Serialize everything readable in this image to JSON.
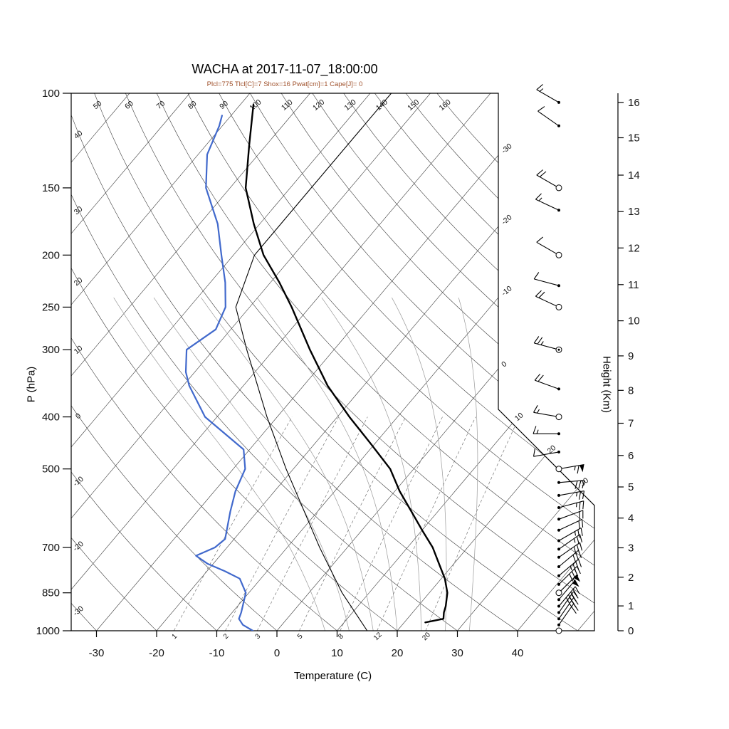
{
  "page": {
    "title": "WACHA at 2017-11-07_18:00:00",
    "subtitle": "Plcl=775 Tlcl[C]=7 Shox=16 Pwat[cm]=1 Cape[J]= 0"
  },
  "chart_data": {
    "type": "skewt-log-p-sounding",
    "station": "WACHA",
    "datetime": "2017-11-07_18:00:00",
    "title": "WACHA at 2017-11-07_18:00:00",
    "subtitle": "Plcl=775 Tlcl[C]=7 Shox=16 Pwat[cm]=1 Cape[J]= 0",
    "axes": {
      "pressure": {
        "label": "P (hPa)",
        "scale": "log",
        "range": [
          100,
          1000
        ],
        "ticks": [
          100,
          150,
          200,
          250,
          300,
          400,
          500,
          700,
          850,
          1000
        ]
      },
      "temperature": {
        "label": "Temperature (C)",
        "ticks": [
          -30,
          -20,
          -10,
          0,
          10,
          20,
          30,
          40
        ]
      },
      "height_km": {
        "label": "Height (Km)",
        "ticks": [
          0,
          1,
          2,
          3,
          4,
          5,
          6,
          7,
          8,
          9,
          10,
          11,
          12,
          13,
          14,
          15,
          16
        ]
      }
    },
    "background": {
      "isotherms_c": [
        -110,
        -100,
        -90,
        -80,
        -70,
        -60,
        -50,
        -40,
        -30,
        -20,
        -10,
        0,
        10,
        20,
        30,
        40,
        50
      ],
      "isotherm_boundary_labels": [
        -30,
        -20,
        -10,
        0,
        10,
        20,
        30
      ],
      "dry_adiabats_c": [
        -30,
        -20,
        -10,
        0,
        10,
        20,
        30,
        40,
        50,
        60,
        70,
        80,
        90,
        100,
        110,
        120,
        130,
        140,
        150,
        160
      ],
      "dry_adiabat_left_labels": [
        -30,
        -20,
        -10,
        0,
        10,
        20,
        30,
        40
      ],
      "dry_adiabat_top_labels": [
        50,
        60,
        70,
        80,
        90,
        100,
        110,
        120,
        130,
        140,
        150,
        160
      ],
      "moist_adiabats_c": [
        8,
        12,
        16,
        20,
        24,
        28,
        32
      ],
      "mixing_ratio_gkg": [
        1,
        2,
        3,
        5,
        8,
        12,
        20
      ]
    },
    "series": {
      "temperature": {
        "name": "temperature",
        "color": "#000000",
        "width": 2.4,
        "points": [
          [
            965,
            23.5
          ],
          [
            950,
            26.0
          ],
          [
            925,
            25.2
          ],
          [
            900,
            24.6
          ],
          [
            850,
            23.0
          ],
          [
            800,
            20.6
          ],
          [
            750,
            17.5
          ],
          [
            700,
            14.2
          ],
          [
            650,
            10.0
          ],
          [
            600,
            5.6
          ],
          [
            550,
            0.8
          ],
          [
            500,
            -3.9
          ],
          [
            450,
            -10.5
          ],
          [
            400,
            -18.0
          ],
          [
            350,
            -26.0
          ],
          [
            300,
            -34.0
          ],
          [
            250,
            -43.0
          ],
          [
            225,
            -48.5
          ],
          [
            200,
            -55.0
          ],
          [
            175,
            -61.0
          ],
          [
            150,
            -67.4
          ],
          [
            125,
            -72.8
          ],
          [
            105,
            -77.8
          ]
        ]
      },
      "dewpoint": {
        "name": "dewpoint",
        "color": "#4169cc",
        "width": 2.2,
        "points": [
          [
            1000,
            -4.0
          ],
          [
            975,
            -6.5
          ],
          [
            950,
            -8.0
          ],
          [
            925,
            -8.5
          ],
          [
            850,
            -10.5
          ],
          [
            800,
            -13.5
          ],
          [
            775,
            -17.0
          ],
          [
            750,
            -21.0
          ],
          [
            725,
            -24.0
          ],
          [
            700,
            -22.0
          ],
          [
            675,
            -21.5
          ],
          [
            600,
            -24.5
          ],
          [
            550,
            -26.5
          ],
          [
            500,
            -28.0
          ],
          [
            460,
            -31.0
          ],
          [
            400,
            -42.0
          ],
          [
            350,
            -49.0
          ],
          [
            330,
            -51.5
          ],
          [
            300,
            -54.5
          ],
          [
            275,
            -52.5
          ],
          [
            250,
            -54.0
          ],
          [
            225,
            -57.5
          ],
          [
            200,
            -62.0
          ],
          [
            175,
            -67.0
          ],
          [
            150,
            -74.0
          ],
          [
            130,
            -78.5
          ],
          [
            115,
            -80.5
          ],
          [
            110,
            -81.5
          ]
        ]
      },
      "reference": {
        "name": "standard-atmosphere-reference",
        "color": "#000000",
        "width": 1.1,
        "points": [
          [
            1000,
            15.0
          ],
          [
            850,
            5.5
          ],
          [
            700,
            -4.6
          ],
          [
            500,
            -21.2
          ],
          [
            400,
            -31.7
          ],
          [
            300,
            -44.5
          ],
          [
            250,
            -52.3
          ],
          [
            200,
            -56.5
          ],
          [
            150,
            -56.5
          ],
          [
            100,
            -56.5
          ]
        ]
      }
    },
    "wind_barbs": [
      {
        "p": 104,
        "dir": 300,
        "spd": 15,
        "marker": "dot"
      },
      {
        "p": 115,
        "dir": 305,
        "spd": 10,
        "marker": "dot"
      },
      {
        "p": 150,
        "dir": 300,
        "spd": 20,
        "marker": "circle"
      },
      {
        "p": 165,
        "dir": 295,
        "spd": 15,
        "marker": "dot"
      },
      {
        "p": 200,
        "dir": 300,
        "spd": 10,
        "marker": "circle"
      },
      {
        "p": 228,
        "dir": 285,
        "spd": 10,
        "marker": "dot"
      },
      {
        "p": 250,
        "dir": 295,
        "spd": 20,
        "marker": "circle"
      },
      {
        "p": 300,
        "dir": 285,
        "spd": 25,
        "marker": "circle-dot"
      },
      {
        "p": 355,
        "dir": 290,
        "spd": 20,
        "marker": "dot"
      },
      {
        "p": 400,
        "dir": 280,
        "spd": 15,
        "marker": "circle"
      },
      {
        "p": 430,
        "dir": 270,
        "spd": 15,
        "marker": "dot"
      },
      {
        "p": 465,
        "dir": 260,
        "spd": 10,
        "marker": "dot"
      },
      {
        "p": 500,
        "dir": 80,
        "spd": 65,
        "marker": "circle"
      },
      {
        "p": 530,
        "dir": 85,
        "spd": 30,
        "marker": "dot"
      },
      {
        "p": 560,
        "dir": 80,
        "spd": 25,
        "marker": "dot"
      },
      {
        "p": 590,
        "dir": 75,
        "spd": 25,
        "marker": "dot"
      },
      {
        "p": 620,
        "dir": 70,
        "spd": 20,
        "marker": "dot"
      },
      {
        "p": 650,
        "dir": 65,
        "spd": 20,
        "marker": "dot"
      },
      {
        "p": 680,
        "dir": 60,
        "spd": 25,
        "marker": "dot"
      },
      {
        "p": 705,
        "dir": 55,
        "spd": 25,
        "marker": "dot"
      },
      {
        "p": 730,
        "dir": 55,
        "spd": 30,
        "marker": "dot"
      },
      {
        "p": 760,
        "dir": 50,
        "spd": 30,
        "marker": "dot"
      },
      {
        "p": 790,
        "dir": 50,
        "spd": 35,
        "marker": "dot"
      },
      {
        "p": 820,
        "dir": 45,
        "spd": 40,
        "marker": "dot"
      },
      {
        "p": 850,
        "dir": 45,
        "spd": 55,
        "marker": "circle"
      },
      {
        "p": 875,
        "dir": 40,
        "spd": 50,
        "marker": "dot"
      },
      {
        "p": 900,
        "dir": 40,
        "spd": 45,
        "marker": "dot"
      },
      {
        "p": 925,
        "dir": 35,
        "spd": 35,
        "marker": "dot"
      },
      {
        "p": 950,
        "dir": 35,
        "spd": 25,
        "marker": "dot"
      },
      {
        "p": 975,
        "dir": 35,
        "spd": 20,
        "marker": "dot"
      },
      {
        "p": 1000,
        "dir": 0,
        "spd": 0,
        "marker": "circle"
      }
    ],
    "colors": {
      "subtitle": "#a0522d",
      "dewpoint": "#4169cc",
      "grid": "#3a3a3a",
      "moist_adiabat": "#9a9a9a",
      "mixing_ratio": "#777777",
      "curve": "#000000"
    }
  }
}
